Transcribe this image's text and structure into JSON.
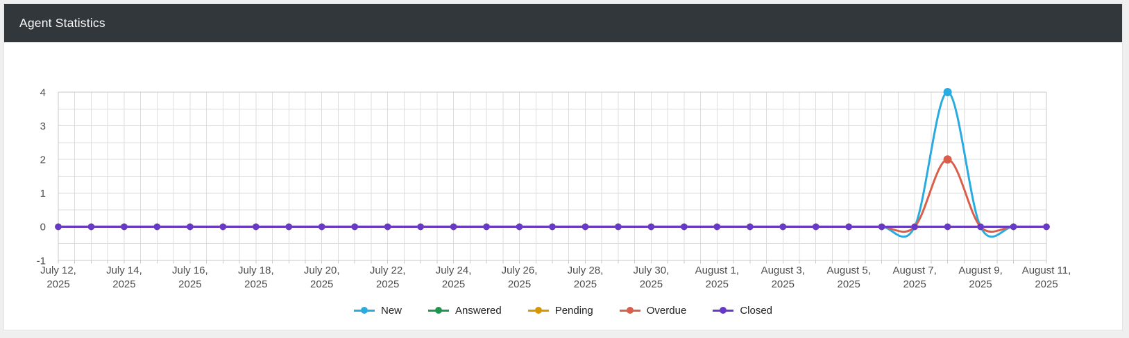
{
  "page": {
    "title": "Agent Statistics"
  },
  "chart_data": {
    "type": "line",
    "title": "Agent Statistics",
    "num_points": 31,
    "x_start": "July 12, 2025",
    "x_end": "August 11, 2025",
    "x_ticks": [
      {
        "i": 0,
        "l1": "July 12,",
        "l2": "2025"
      },
      {
        "i": 2,
        "l1": "July 14,",
        "l2": "2025"
      },
      {
        "i": 4,
        "l1": "July 16,",
        "l2": "2025"
      },
      {
        "i": 6,
        "l1": "July 18,",
        "l2": "2025"
      },
      {
        "i": 8,
        "l1": "July 20,",
        "l2": "2025"
      },
      {
        "i": 10,
        "l1": "July 22,",
        "l2": "2025"
      },
      {
        "i": 12,
        "l1": "July 24,",
        "l2": "2025"
      },
      {
        "i": 14,
        "l1": "July 26,",
        "l2": "2025"
      },
      {
        "i": 16,
        "l1": "July 28,",
        "l2": "2025"
      },
      {
        "i": 18,
        "l1": "July 30,",
        "l2": "2025"
      },
      {
        "i": 20,
        "l1": "August 1,",
        "l2": "2025"
      },
      {
        "i": 22,
        "l1": "August 3,",
        "l2": "2025"
      },
      {
        "i": 24,
        "l1": "August 5,",
        "l2": "2025"
      },
      {
        "i": 26,
        "l1": "August 7,",
        "l2": "2025"
      },
      {
        "i": 28,
        "l1": "August 9,",
        "l2": "2025"
      },
      {
        "i": 30,
        "l1": "August 11,",
        "l2": "2025"
      }
    ],
    "yticks": [
      -1,
      0,
      1,
      2,
      3,
      4
    ],
    "ylim": [
      -1,
      4
    ],
    "grid": {
      "on": true,
      "x_minor_step_days": 0.5,
      "y_minor_step": 0.5
    },
    "legend_position": "bottom",
    "line_style": "smooth-spline",
    "series": [
      {
        "name": "New",
        "color": "#29ABDF",
        "values": [
          0,
          0,
          0,
          0,
          0,
          0,
          0,
          0,
          0,
          0,
          0,
          0,
          0,
          0,
          0,
          0,
          0,
          0,
          0,
          0,
          0,
          0,
          0,
          0,
          0,
          0,
          0,
          4,
          0,
          0,
          0
        ]
      },
      {
        "name": "Answered",
        "color": "#1F9650",
        "values": [
          0,
          0,
          0,
          0,
          0,
          0,
          0,
          0,
          0,
          0,
          0,
          0,
          0,
          0,
          0,
          0,
          0,
          0,
          0,
          0,
          0,
          0,
          0,
          0,
          0,
          0,
          0,
          0,
          0,
          0,
          0
        ]
      },
      {
        "name": "Pending",
        "color": "#D89600",
        "values": [
          0,
          0,
          0,
          0,
          0,
          0,
          0,
          0,
          0,
          0,
          0,
          0,
          0,
          0,
          0,
          0,
          0,
          0,
          0,
          0,
          0,
          0,
          0,
          0,
          0,
          0,
          0,
          0,
          0,
          0,
          0
        ]
      },
      {
        "name": "Overdue",
        "color": "#D95F4B",
        "values": [
          0,
          0,
          0,
          0,
          0,
          0,
          0,
          0,
          0,
          0,
          0,
          0,
          0,
          0,
          0,
          0,
          0,
          0,
          0,
          0,
          0,
          0,
          0,
          0,
          0,
          0,
          0,
          2,
          0,
          0,
          0
        ]
      },
      {
        "name": "Closed",
        "color": "#6639C8",
        "values": [
          0,
          0,
          0,
          0,
          0,
          0,
          0,
          0,
          0,
          0,
          0,
          0,
          0,
          0,
          0,
          0,
          0,
          0,
          0,
          0,
          0,
          0,
          0,
          0,
          0,
          0,
          0,
          0,
          0,
          0,
          0
        ]
      }
    ]
  }
}
